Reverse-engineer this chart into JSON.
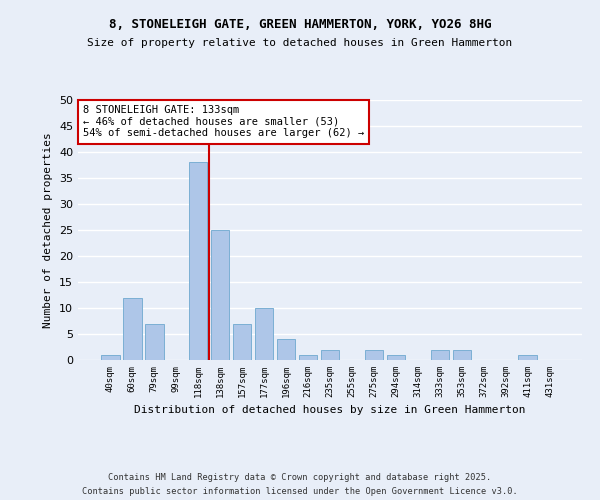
{
  "title1": "8, STONELEIGH GATE, GREEN HAMMERTON, YORK, YO26 8HG",
  "title2": "Size of property relative to detached houses in Green Hammerton",
  "xlabel": "Distribution of detached houses by size in Green Hammerton",
  "ylabel": "Number of detached properties",
  "footnote1": "Contains HM Land Registry data © Crown copyright and database right 2025.",
  "footnote2": "Contains public sector information licensed under the Open Government Licence v3.0.",
  "bar_labels": [
    "40sqm",
    "60sqm",
    "79sqm",
    "99sqm",
    "118sqm",
    "138sqm",
    "157sqm",
    "177sqm",
    "196sqm",
    "216sqm",
    "235sqm",
    "255sqm",
    "275sqm",
    "294sqm",
    "314sqm",
    "333sqm",
    "353sqm",
    "372sqm",
    "392sqm",
    "411sqm",
    "431sqm"
  ],
  "bar_values": [
    1,
    12,
    7,
    0,
    38,
    25,
    7,
    10,
    4,
    1,
    2,
    0,
    2,
    1,
    0,
    2,
    2,
    0,
    0,
    1,
    0
  ],
  "bar_color": "#aec6e8",
  "bar_edge_color": "#7bafd4",
  "vline_color": "#cc0000",
  "annotation_text": "8 STONELEIGH GATE: 133sqm\n← 46% of detached houses are smaller (53)\n54% of semi-detached houses are larger (62) →",
  "annotation_box_color": "#ffffff",
  "annotation_border_color": "#cc0000",
  "background_color": "#e8eef8",
  "plot_bg_color": "#e8eef8",
  "grid_color": "#ffffff",
  "ylim": [
    0,
    50
  ],
  "yticks": [
    0,
    5,
    10,
    15,
    20,
    25,
    30,
    35,
    40,
    45,
    50
  ]
}
